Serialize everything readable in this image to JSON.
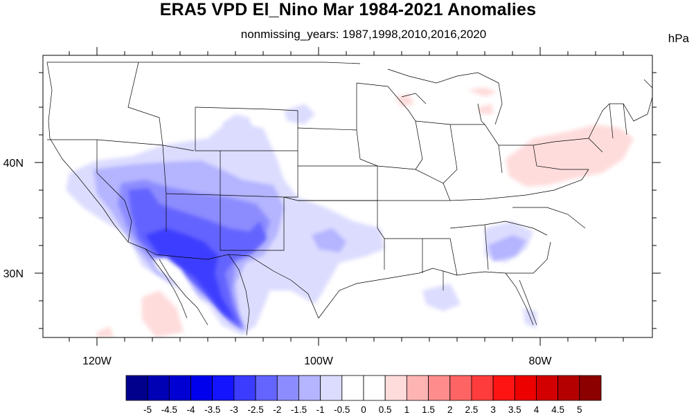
{
  "figure": {
    "title": "ERA5 VPD El_Nino Mar 1984-2021 Anomalies",
    "subtitle": "nonmissing_years: 1987,1998,2010,2016,2020",
    "units": "hPa"
  },
  "map": {
    "region": "contiguous-united-states",
    "lon_range": [
      -125,
      -67
    ],
    "lat_range": [
      24,
      50
    ],
    "lon_tick_labels": [
      {
        "lon": -120,
        "label": "120W"
      },
      {
        "lon": -100,
        "label": "100W"
      },
      {
        "lon": -80,
        "label": "80W"
      }
    ],
    "lat_tick_labels": [
      {
        "lat": 40,
        "label": "40N"
      },
      {
        "lat": 30,
        "label": "30N"
      }
    ]
  },
  "colorbar": {
    "labels": [
      "-5",
      "-4.5",
      "-4",
      "-3.5",
      "-3",
      "-2.5",
      "-2",
      "-1.5",
      "-1",
      "-0.5",
      "0",
      "0.5",
      "1",
      "1.5",
      "2",
      "2.5",
      "3",
      "3.5",
      "4",
      "4.5",
      "5"
    ],
    "colors": [
      "#00008c",
      "#0000b4",
      "#0000d2",
      "#0000ec",
      "#1414ff",
      "#3c3cff",
      "#6464ff",
      "#8c8cff",
      "#b4b4ff",
      "#dcdcff",
      "#ffffff",
      "#ffffff",
      "#ffdcdc",
      "#ffb4b4",
      "#ff8c8c",
      "#ff6464",
      "#ff3c3c",
      "#ff1414",
      "#ec0000",
      "#d20000",
      "#b40000",
      "#8c0000"
    ]
  }
}
